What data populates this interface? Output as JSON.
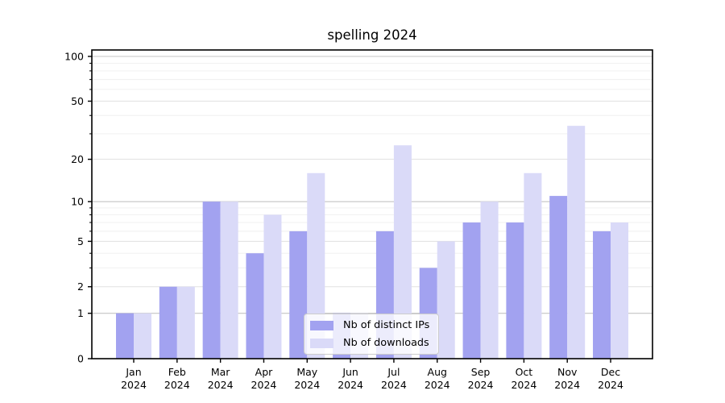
{
  "title": "spelling 2024",
  "legend": {
    "entries": [
      {
        "label": "Nb of distinct IPs"
      },
      {
        "label": "Nb of downloads"
      }
    ]
  },
  "colors": {
    "ips_bar": "#a2a2f0",
    "downloads_bar": "#dadaf8",
    "axis": "#000000",
    "grid_decade": "#c4c4c4",
    "grid_labeled": "#e1e1e1",
    "grid_minor": "#efefef",
    "tick_text": "#000000",
    "legend_border": "#cccccc"
  },
  "chart_data": {
    "type": "bar",
    "title": "spelling 2024",
    "categories": [
      "Jan",
      "Feb",
      "Mar",
      "Apr",
      "May",
      "Jun",
      "Jul",
      "Aug",
      "Sep",
      "Oct",
      "Nov",
      "Dec"
    ],
    "category_year": "2024",
    "series": [
      {
        "name": "Nb of distinct IPs",
        "color": "#a2a2f0",
        "values": [
          1,
          2,
          10,
          4,
          6,
          1,
          6,
          3,
          7,
          7,
          11,
          6
        ]
      },
      {
        "name": "Nb of downloads",
        "color": "#dadaf8",
        "values": [
          1,
          2,
          10,
          8,
          16,
          1,
          25,
          5,
          10,
          16,
          34,
          7
        ]
      }
    ],
    "yscale": "log1p",
    "ylim": [
      0,
      115
    ],
    "yticks": [
      0,
      1,
      2,
      5,
      10,
      20,
      50,
      100
    ],
    "yticks_decade": [
      1,
      10,
      100
    ],
    "yticks_labeled_mid": [
      2,
      5,
      20,
      50
    ],
    "yticks_minor": [
      3,
      4,
      6,
      7,
      8,
      9,
      30,
      40,
      60,
      70,
      80,
      90
    ],
    "grid": "on",
    "legend_position": "lower center",
    "xlabel": "",
    "ylabel": ""
  }
}
